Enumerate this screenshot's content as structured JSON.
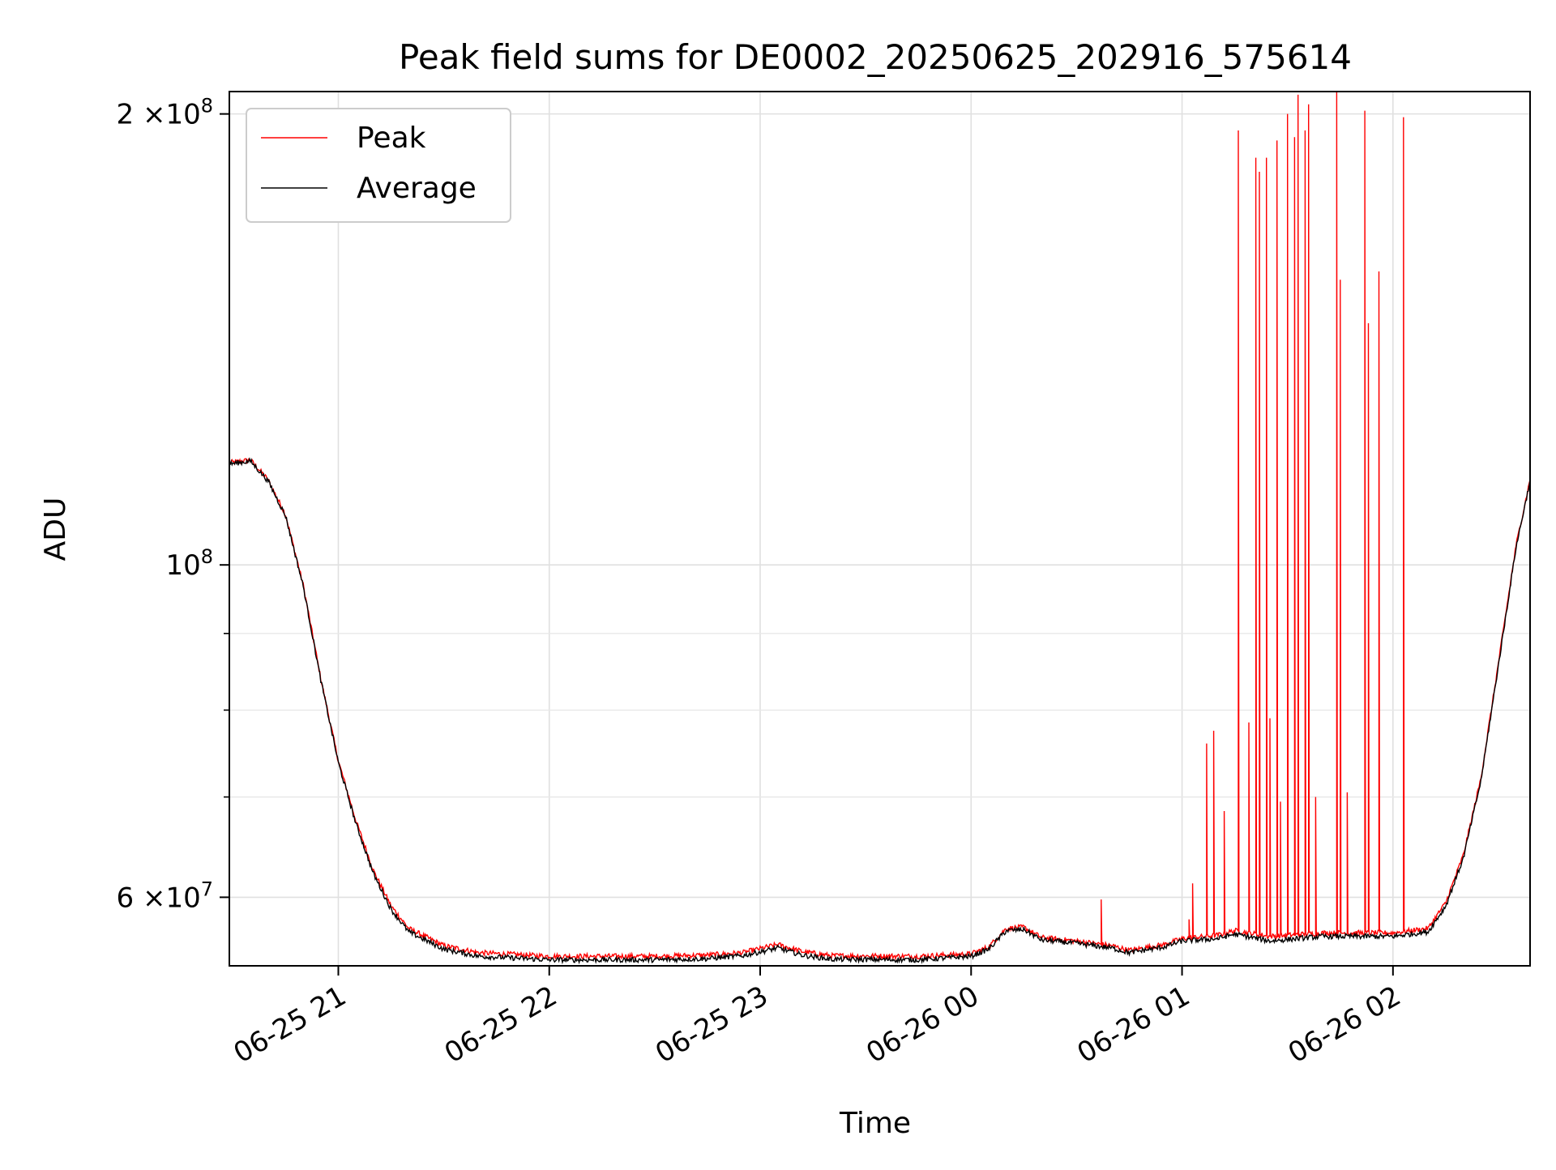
{
  "chart_data": {
    "type": "line",
    "title": "Peak field sums for DE0002_20250625_202916_575614",
    "xlabel": "Time",
    "ylabel": "ADU",
    "yscale": "log",
    "ylim": [
      54000000,
      207000000
    ],
    "xlim": [
      "2025-06-25 20:29",
      "2025-06-26 02:39"
    ],
    "grid": true,
    "legend_position": "upper left",
    "x_ticks": [
      {
        "t": "2025-06-25 21:00",
        "label": "06-25 21"
      },
      {
        "t": "2025-06-25 22:00",
        "label": "06-25 22"
      },
      {
        "t": "2025-06-25 23:00",
        "label": "06-25 23"
      },
      {
        "t": "2025-06-26 00:00",
        "label": "06-26 00"
      },
      {
        "t": "2025-06-26 01:00",
        "label": "06-26 01"
      },
      {
        "t": "2025-06-26 02:00",
        "label": "06-26 02"
      }
    ],
    "y_ticks": [
      {
        "value": 200000000,
        "mant": "2",
        "label": "×10",
        "exp": "8"
      },
      {
        "value": 100000000,
        "mant": "",
        "label": "10",
        "exp": "8"
      },
      {
        "value": 60000000,
        "mant": "6",
        "label": "×10",
        "exp": "7"
      }
    ],
    "y_minor_ticks": [
      70000000,
      80000000,
      90000000
    ],
    "series": [
      {
        "name": "Peak",
        "color": "#ff0000",
        "points": [
          [
            "2025-06-25 20:29",
            117000000
          ],
          [
            "2025-06-25 20:35",
            117500000
          ],
          [
            "2025-06-25 20:40",
            114000000
          ],
          [
            "2025-06-25 20:45",
            108000000
          ],
          [
            "2025-06-25 20:50",
            97000000
          ],
          [
            "2025-06-25 20:55",
            84000000
          ],
          [
            "2025-06-25 21:00",
            74000000
          ],
          [
            "2025-06-25 21:05",
            67500000
          ],
          [
            "2025-06-25 21:10",
            62500000
          ],
          [
            "2025-06-25 21:15",
            59200000
          ],
          [
            "2025-06-25 21:20",
            57200000
          ],
          [
            "2025-06-25 21:30",
            55700000
          ],
          [
            "2025-06-25 21:40",
            55100000
          ],
          [
            "2025-06-25 22:00",
            54800000
          ],
          [
            "2025-06-25 22:30",
            54800000
          ],
          [
            "2025-06-25 22:45",
            54900000
          ],
          [
            "2025-06-25 22:55",
            55100000
          ],
          [
            "2025-06-25 23:05",
            55800000
          ],
          [
            "2025-06-25 23:12",
            55200000
          ],
          [
            "2025-06-25 23:20",
            54850000
          ],
          [
            "2025-06-25 23:45",
            54800000
          ],
          [
            "2025-06-26 00:00",
            55000000
          ],
          [
            "2025-06-26 00:05",
            55600000
          ],
          [
            "2025-06-26 00:10",
            57200000
          ],
          [
            "2025-06-26 00:15",
            57300000
          ],
          [
            "2025-06-26 00:20",
            56400000
          ],
          [
            "2025-06-26 00:30",
            56100000
          ],
          [
            "2025-06-26 00:40",
            55700000
          ],
          [
            "2025-06-26 00:45",
            55300000
          ],
          [
            "2025-06-26 00:55",
            55800000
          ],
          [
            "2025-06-26 01:00",
            56300000
          ],
          [
            "2025-06-26 01:10",
            56600000
          ],
          [
            "2025-06-26 01:15",
            57000000
          ],
          [
            "2025-06-26 01:25",
            56500000
          ],
          [
            "2025-06-26 01:40",
            56800000
          ],
          [
            "2025-06-26 02:00",
            56800000
          ],
          [
            "2025-06-26 02:10",
            57200000
          ],
          [
            "2025-06-26 02:15",
            59500000
          ],
          [
            "2025-06-26 02:20",
            64000000
          ],
          [
            "2025-06-26 02:25",
            72000000
          ],
          [
            "2025-06-26 02:30",
            86000000
          ],
          [
            "2025-06-26 02:35",
            103000000
          ],
          [
            "2025-06-26 02:39",
            114000000
          ]
        ],
        "spikes": [
          [
            "2025-06-26 00:37",
            59800000
          ],
          [
            "2025-06-26 01:02",
            58000000
          ],
          [
            "2025-06-26 01:03",
            61300000
          ],
          [
            "2025-06-26 01:07",
            76000000
          ],
          [
            "2025-06-26 01:09",
            77500000
          ],
          [
            "2025-06-26 01:12",
            68500000
          ],
          [
            "2025-06-26 01:16",
            195000000
          ],
          [
            "2025-06-26 01:19",
            78500000
          ],
          [
            "2025-06-26 01:21",
            187000000
          ],
          [
            "2025-06-26 01:22",
            183000000
          ],
          [
            "2025-06-26 01:24",
            187000000
          ],
          [
            "2025-06-26 01:25",
            79000000
          ],
          [
            "2025-06-26 01:27",
            192000000
          ],
          [
            "2025-06-26 01:28",
            69500000
          ],
          [
            "2025-06-26 01:30",
            200000000
          ],
          [
            "2025-06-26 01:32",
            193000000
          ],
          [
            "2025-06-26 01:33",
            206000000
          ],
          [
            "2025-06-26 01:35",
            195000000
          ],
          [
            "2025-06-26 01:36",
            203000000
          ],
          [
            "2025-06-26 01:38",
            70000000
          ],
          [
            "2025-06-26 01:44",
            207000000
          ],
          [
            "2025-06-26 01:45",
            155000000
          ],
          [
            "2025-06-26 01:47",
            70500000
          ],
          [
            "2025-06-26 01:52",
            201000000
          ],
          [
            "2025-06-26 01:53",
            145000000
          ],
          [
            "2025-06-26 01:56",
            157000000
          ],
          [
            "2025-06-26 02:03",
            199000000
          ]
        ]
      },
      {
        "name": "Average",
        "color": "#000000",
        "points": [
          [
            "2025-06-25 20:29",
            116800000
          ],
          [
            "2025-06-25 20:35",
            117300000
          ],
          [
            "2025-06-25 20:40",
            113800000
          ],
          [
            "2025-06-25 20:45",
            107800000
          ],
          [
            "2025-06-25 20:50",
            96800000
          ],
          [
            "2025-06-25 20:55",
            83800000
          ],
          [
            "2025-06-25 21:00",
            73800000
          ],
          [
            "2025-06-25 21:05",
            67200000
          ],
          [
            "2025-06-25 21:10",
            62200000
          ],
          [
            "2025-06-25 21:15",
            58900000
          ],
          [
            "2025-06-25 21:20",
            56900000
          ],
          [
            "2025-06-25 21:30",
            55400000
          ],
          [
            "2025-06-25 21:40",
            54800000
          ],
          [
            "2025-06-25 22:00",
            54500000
          ],
          [
            "2025-06-25 22:30",
            54500000
          ],
          [
            "2025-06-25 22:45",
            54600000
          ],
          [
            "2025-06-25 22:55",
            54850000
          ],
          [
            "2025-06-25 23:05",
            55500000
          ],
          [
            "2025-06-25 23:12",
            54900000
          ],
          [
            "2025-06-25 23:20",
            54550000
          ],
          [
            "2025-06-25 23:45",
            54500000
          ],
          [
            "2025-06-26 00:00",
            54800000
          ],
          [
            "2025-06-26 00:05",
            55400000
          ],
          [
            "2025-06-26 00:10",
            57000000
          ],
          [
            "2025-06-26 00:15",
            57100000
          ],
          [
            "2025-06-26 00:20",
            56200000
          ],
          [
            "2025-06-26 00:30",
            55900000
          ],
          [
            "2025-06-26 00:40",
            55500000
          ],
          [
            "2025-06-26 00:45",
            55100000
          ],
          [
            "2025-06-26 00:55",
            55600000
          ],
          [
            "2025-06-26 01:00",
            56100000
          ],
          [
            "2025-06-26 01:10",
            56300000
          ],
          [
            "2025-06-26 01:15",
            56700000
          ],
          [
            "2025-06-26 01:25",
            56100000
          ],
          [
            "2025-06-26 01:40",
            56500000
          ],
          [
            "2025-06-26 02:00",
            56500000
          ],
          [
            "2025-06-26 02:10",
            56900000
          ],
          [
            "2025-06-26 02:15",
            59200000
          ],
          [
            "2025-06-26 02:20",
            63700000
          ],
          [
            "2025-06-26 02:25",
            71700000
          ],
          [
            "2025-06-26 02:30",
            85700000
          ],
          [
            "2025-06-26 02:35",
            102700000
          ],
          [
            "2025-06-26 02:39",
            113800000
          ]
        ],
        "spikes": []
      }
    ]
  }
}
